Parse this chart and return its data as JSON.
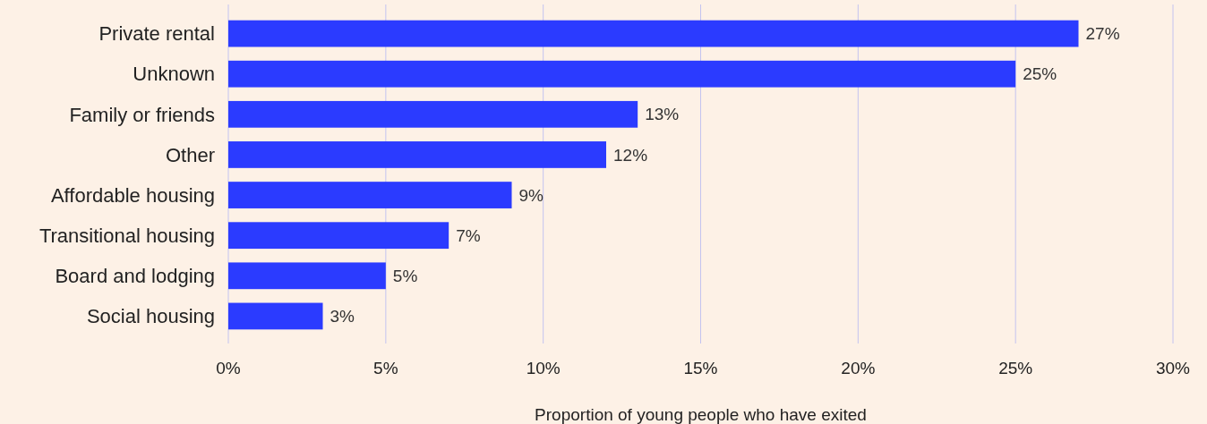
{
  "chart_data": {
    "type": "bar",
    "orientation": "horizontal",
    "xlabel": "Proportion of young people who have exited",
    "categories": [
      "Private rental",
      "Unknown",
      "Family or friends",
      "Other",
      "Affordable housing",
      "Transitional housing",
      "Board and lodging",
      "Social housing"
    ],
    "values": [
      27,
      25,
      13,
      12,
      9,
      7,
      5,
      3
    ],
    "color": "#2b3bff",
    "xlim": [
      0,
      30
    ],
    "xticks": [
      {
        "value": 0,
        "label": "0%"
      },
      {
        "value": 5,
        "label": "5%"
      },
      {
        "value": 10,
        "label": "10%"
      },
      {
        "value": 15,
        "label": "15%"
      },
      {
        "value": 20,
        "label": "20%"
      },
      {
        "value": 25,
        "label": "25%"
      },
      {
        "value": 30,
        "label": "30%"
      }
    ],
    "grid": "x",
    "value_labels": [
      "27%",
      "25%",
      "13%",
      "12%",
      "9%",
      "7%",
      "5%",
      "3%"
    ]
  }
}
